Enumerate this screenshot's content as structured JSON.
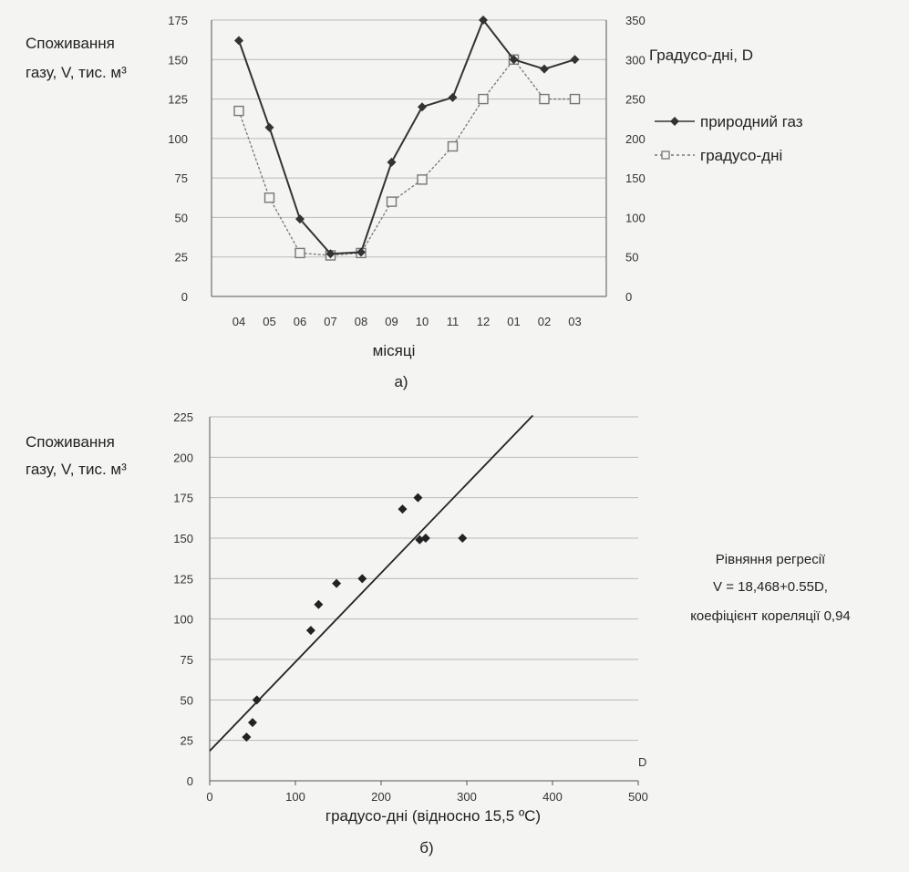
{
  "chart_data": [
    {
      "type": "line",
      "panel_label": "а)",
      "ylabel_left": [
        "Споживання",
        "газу, V, тис. м³"
      ],
      "ylabel_right": "Градусо-дні, D",
      "xlabel": "місяці",
      "categories": [
        "04",
        "05",
        "06",
        "07",
        "08",
        "09",
        "10",
        "11",
        "12",
        "01",
        "02",
        "03"
      ],
      "y_left": {
        "lim": [
          0,
          175
        ],
        "ticks": [
          "0",
          "25",
          "50",
          "75",
          "100",
          "125",
          "150",
          "175"
        ]
      },
      "y_right": {
        "lim": [
          0,
          350
        ],
        "ticks": [
          "0",
          "50",
          "100",
          "150",
          "200",
          "250",
          "300",
          "350"
        ]
      },
      "grid": "horizontal",
      "legend_position": "right",
      "series": [
        {
          "name": "природний газ",
          "axis": "left",
          "marker": "diamond",
          "color": "#333333",
          "values": [
            162,
            107,
            49,
            27,
            28,
            85,
            120,
            126,
            175,
            150,
            144,
            150
          ]
        },
        {
          "name": "градусо-дні",
          "axis": "right",
          "marker": "square-open",
          "color": "#777777",
          "values": [
            235,
            125,
            55,
            52,
            55,
            120,
            148,
            190,
            250,
            300,
            250,
            250
          ]
        }
      ]
    },
    {
      "type": "scatter",
      "panel_label": "б)",
      "ylabel": [
        "Споживання",
        "газу, V, тис. м³"
      ],
      "xlabel": "градусо-дні (відносно 15,5 ºC)",
      "x_axis_tag": "D",
      "x": {
        "lim": [
          0,
          500
        ],
        "ticks": [
          "0",
          "100",
          "200",
          "300",
          "400",
          "500"
        ]
      },
      "y": {
        "lim": [
          0,
          225
        ],
        "ticks": [
          "0",
          "25",
          "50",
          "75",
          "100",
          "125",
          "150",
          "175",
          "200",
          "225"
        ]
      },
      "grid": "horizontal",
      "points": [
        [
          43,
          27
        ],
        [
          50,
          36
        ],
        [
          55,
          50
        ],
        [
          118,
          93
        ],
        [
          127,
          109
        ],
        [
          148,
          122
        ],
        [
          178,
          125
        ],
        [
          225,
          168
        ],
        [
          243,
          175
        ],
        [
          245,
          149
        ],
        [
          252,
          150
        ],
        [
          295,
          150
        ]
      ],
      "regression": {
        "intercept": 18.468,
        "slope": 0.55,
        "x_range": [
          0,
          377
        ]
      },
      "annotation": [
        "Рівняння регресії",
        "V = 18,468+0.55D,",
        "коефіцієнт кореляції  0,94"
      ],
      "colors": {
        "marker": "#222222",
        "line": "#222222"
      }
    }
  ]
}
